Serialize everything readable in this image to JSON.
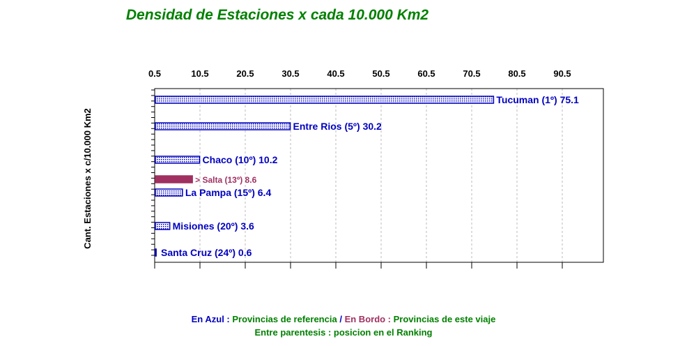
{
  "title": "Densidad de Estaciones x cada 10.000 Km2",
  "legend": {
    "azul_key": "En Azul :",
    "azul_text": "Provincias de referencia",
    "separator": "/",
    "bordo_key": "En Bordo :",
    "bordo_text": "Provincias de este viaje",
    "parentesis": "Entre parentesis : posicion en el Ranking"
  },
  "colors": {
    "blue": "#0000c0",
    "bordo": "#a03060",
    "green": "#008000",
    "grid": "#bbbbbb"
  },
  "chart_data": {
    "type": "bar",
    "orientation": "horizontal",
    "ylabel": "Cant. Estaciones x c/10.000 Km2",
    "xlim": [
      0.5,
      99
    ],
    "x_ticks": [
      0.5,
      10.5,
      20.5,
      30.5,
      40.5,
      50.5,
      60.5,
      70.5,
      80.5,
      90.5
    ],
    "x_tick_labels": [
      "0.5",
      "10.5",
      "20.5",
      "30.5",
      "40.5",
      "50.5",
      "60.5",
      "70.5",
      "80.5",
      "90.5"
    ],
    "grid": true,
    "bars": [
      {
        "label": "Tucuman (1º) 75.1",
        "value": 75.1,
        "style": "reference"
      },
      {
        "label": "Entre Rios (5º) 30.2",
        "value": 30.2,
        "style": "reference"
      },
      {
        "label": "Chaco (10º) 10.2",
        "value": 10.2,
        "style": "reference"
      },
      {
        "label": "> Salta (13º) 8.6",
        "value": 8.6,
        "style": "trip"
      },
      {
        "label": "La Pampa (15º) 6.4",
        "value": 6.4,
        "style": "reference"
      },
      {
        "label": "Misiones (20º) 3.6",
        "value": 3.6,
        "style": "reference"
      },
      {
        "label": "Santa Cruz (24º) 0.6",
        "value": 0.6,
        "style": "reference"
      }
    ]
  }
}
